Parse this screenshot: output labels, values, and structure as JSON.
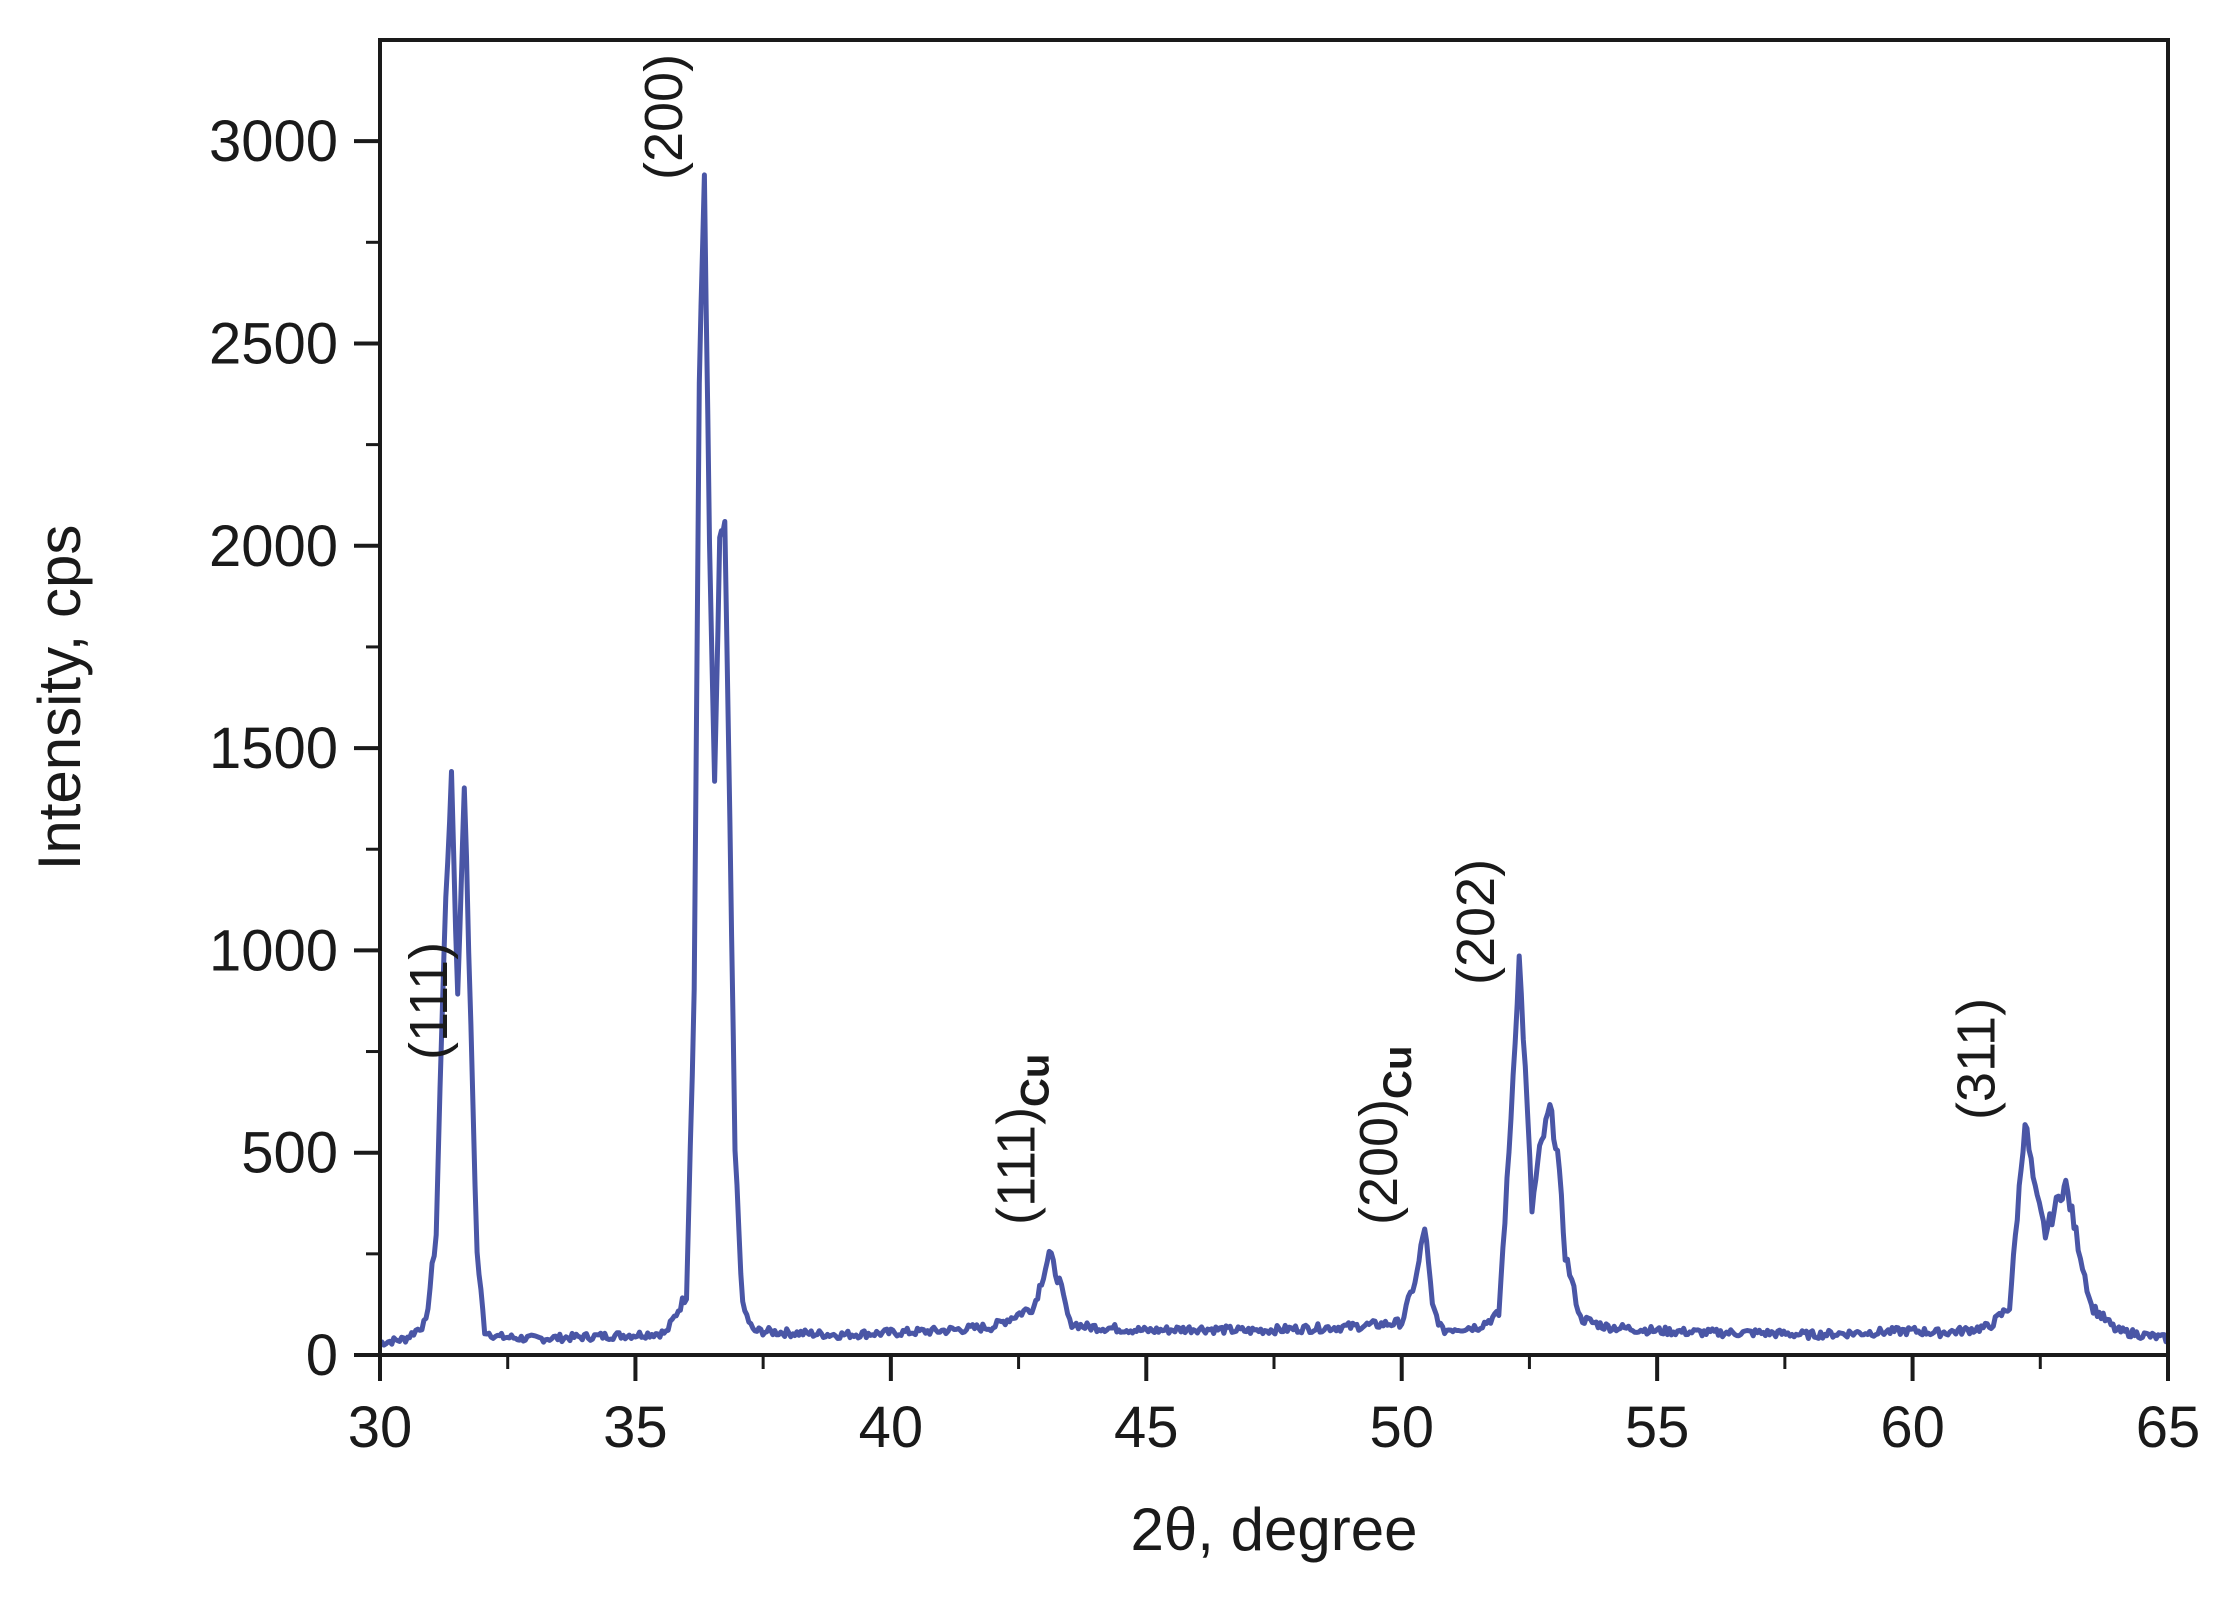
{
  "chart_data": {
    "type": "line",
    "title": "",
    "xlabel": "2θ, degree",
    "ylabel": "Intensity, cps",
    "xlim": [
      30,
      65
    ],
    "ylim": [
      0,
      3250
    ],
    "xticks": [
      30,
      35,
      40,
      45,
      50,
      55,
      60,
      65
    ],
    "yticks": [
      0,
      500,
      1000,
      1500,
      2000,
      2500,
      3000
    ],
    "x_tick_labels": [
      "30",
      "35",
      "40",
      "45",
      "50",
      "55",
      "60",
      "65"
    ],
    "y_tick_labels": [
      "0",
      "500",
      "1000",
      "1500",
      "2000",
      "2500",
      "3000"
    ],
    "grid": false,
    "legend": "none",
    "colors": {
      "line": "#4a56a6",
      "axis": "#1a1a1a"
    },
    "series": [
      {
        "name": "",
        "x": [
          30.0,
          30.5,
          30.9,
          31.1,
          31.25,
          31.4,
          31.52,
          31.65,
          31.78,
          31.9,
          32.05,
          32.3,
          33.0,
          34.0,
          35.0,
          35.6,
          36.0,
          36.15,
          36.25,
          36.35,
          36.45,
          36.55,
          36.65,
          36.75,
          36.85,
          36.95,
          37.1,
          37.3,
          38.0,
          39.0,
          40.0,
          41.0,
          42.0,
          42.8,
          43.1,
          43.3,
          43.5,
          43.8,
          44.5,
          45.0,
          46.0,
          47.0,
          48.0,
          49.0,
          50.0,
          50.3,
          50.45,
          50.6,
          50.8,
          51.0,
          51.5,
          51.9,
          52.1,
          52.3,
          52.42,
          52.55,
          52.7,
          52.9,
          53.05,
          53.2,
          53.5,
          54.0,
          55.0,
          56.0,
          57.0,
          58.0,
          59.0,
          60.0,
          60.5,
          61.0,
          61.5,
          61.9,
          62.05,
          62.2,
          62.4,
          62.6,
          62.9,
          63.0,
          63.2,
          63.5,
          64.0,
          64.5,
          65.0
        ],
        "y": [
          30,
          40,
          80,
          300,
          1000,
          1440,
          880,
          1420,
          800,
          250,
          60,
          45,
          40,
          45,
          50,
          55,
          150,
          900,
          2400,
          2920,
          2000,
          1400,
          2000,
          2060,
          1300,
          500,
          120,
          60,
          55,
          50,
          55,
          60,
          70,
          120,
          250,
          180,
          80,
          70,
          65,
          60,
          65,
          60,
          65,
          70,
          80,
          200,
          320,
          120,
          60,
          65,
          70,
          100,
          500,
          980,
          700,
          360,
          500,
          610,
          500,
          250,
          90,
          70,
          60,
          55,
          55,
          50,
          55,
          60,
          55,
          60,
          70,
          120,
          350,
          580,
          400,
          300,
          400,
          420,
          300,
          120,
          60,
          50,
          40
        ]
      }
    ],
    "annotations": [
      {
        "text": "(111)",
        "subscript": "",
        "x": 31.7
      },
      {
        "text": "(200)",
        "subscript": "",
        "x": 36.3
      },
      {
        "text": "(111)",
        "subscript": "Cu",
        "x": 43.2
      },
      {
        "text": "(200)",
        "subscript": "Cu",
        "x": 50.3
      },
      {
        "text": "(202)",
        "subscript": "",
        "x": 52.2
      },
      {
        "text": "(311)",
        "subscript": "",
        "x": 62.0
      }
    ]
  }
}
